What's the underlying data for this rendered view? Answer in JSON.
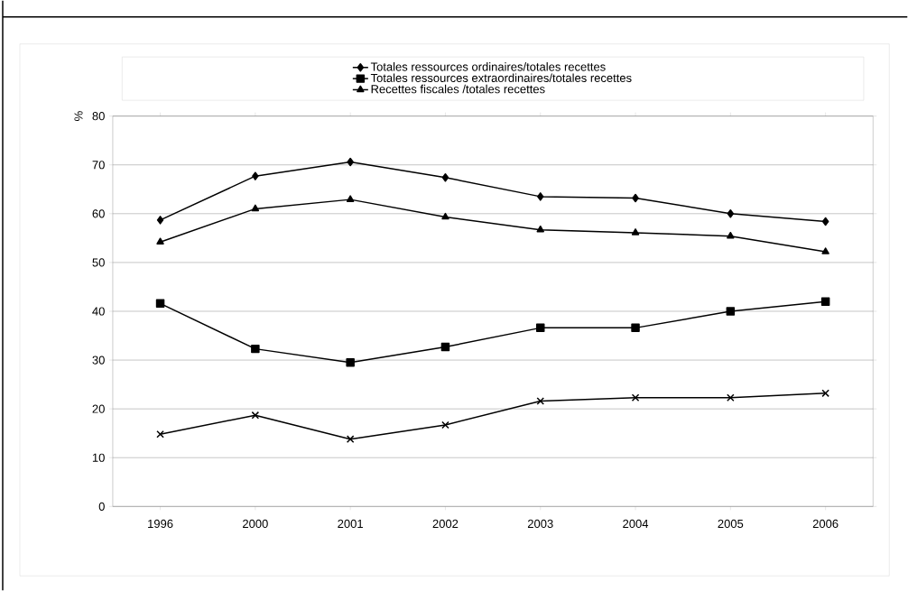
{
  "chart_data": {
    "type": "line",
    "ylabel": "%",
    "categories": [
      "1996",
      "2000",
      "2001",
      "2002",
      "2003",
      "2004",
      "2005",
      "2006"
    ],
    "series": [
      {
        "name": "Totales ressources ordinaires/totales recettes",
        "color": "#000000",
        "marker": "diamond",
        "values": [
          58.7,
          67.7,
          70.6,
          67.4,
          63.5,
          63.2,
          60.0,
          58.4
        ]
      },
      {
        "name": "Totales ressources extraordinaires/totales recettes",
        "color": "#000000",
        "marker": "square",
        "values": [
          41.6,
          32.3,
          29.5,
          32.7,
          36.6,
          36.6,
          40.0,
          42.0
        ]
      },
      {
        "name": "Recettes fiscales /totales recettes",
        "color": "#000000",
        "marker": "triangle",
        "values": [
          54.2,
          61.0,
          62.9,
          59.3,
          56.7,
          56.1,
          55.4,
          52.2
        ]
      },
      {
        "color": "#000000",
        "marker": "cross",
        "values": [
          14.8,
          18.7,
          13.8,
          16.7,
          21.6,
          22.3,
          22.3,
          23.2
        ]
      }
    ],
    "ylim": [
      0,
      80
    ],
    "yticks": [
      0,
      10,
      20,
      30,
      40,
      50,
      60,
      70,
      80
    ],
    "grid": "y",
    "legend": "top"
  }
}
